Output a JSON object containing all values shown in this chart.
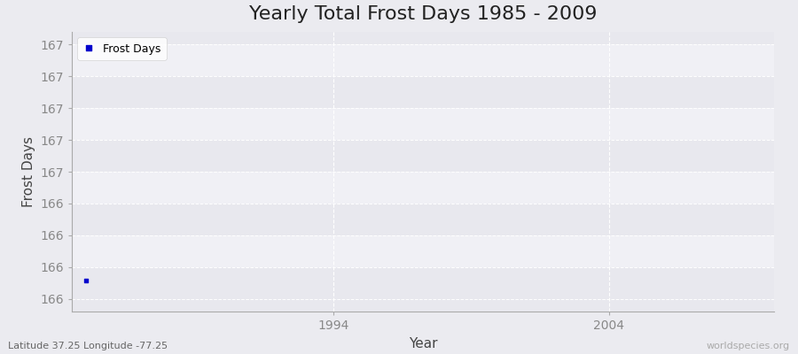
{
  "title": "Yearly Total Frost Days 1985 - 2009",
  "xlabel": "Year",
  "ylabel": "Frost Days",
  "x_data": [
    1985
  ],
  "y_data": [
    165.95
  ],
  "series_label": "Frost Days",
  "marker_color": "#0000cc",
  "marker_size": 3,
  "xlim": [
    1984.5,
    2010
  ],
  "ylim": [
    165.85,
    167.25
  ],
  "ytick_labels": [
    "166",
    "166",
    "166",
    "166",
    "167",
    "167",
    "167",
    "167",
    "167"
  ],
  "xticks": [
    1994,
    2004
  ],
  "background_color": "#ebebf0",
  "grid_color": "#ffffff",
  "title_fontsize": 16,
  "axis_label_fontsize": 11,
  "tick_label_fontsize": 10,
  "footnote_left": "Latitude 37.25 Longitude -77.25",
  "footnote_right": "worldspecies.org",
  "footnote_left_color": "#666666",
  "footnote_right_color": "#aaaaaa"
}
